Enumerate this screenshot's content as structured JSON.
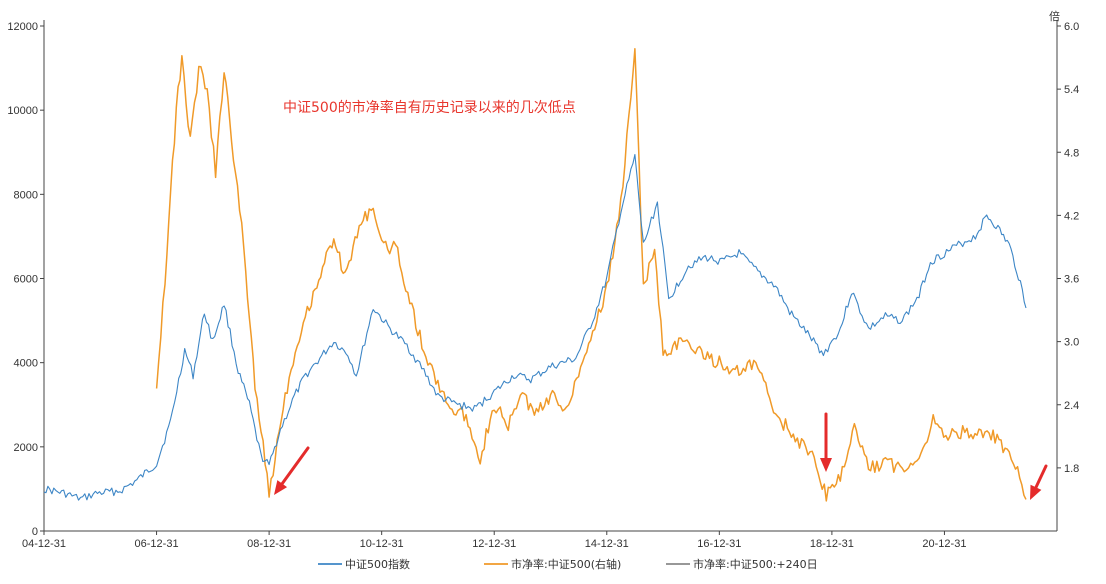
{
  "chart_data": {
    "type": "line",
    "title": "",
    "annotation": "中证500的市净率自有历史记录以来的几次低点",
    "annotation_color": "#e8362d",
    "y_right_unit": "倍",
    "x_ticks": [
      "04-12-31",
      "06-12-31",
      "08-12-31",
      "10-12-31",
      "12-12-31",
      "14-12-31",
      "16-12-31",
      "18-12-31",
      "20-12-31"
    ],
    "ylim_left": [
      0,
      12000
    ],
    "y_left_ticks": [
      "0",
      "2000",
      "4000",
      "6000",
      "8000",
      "10000",
      "12000"
    ],
    "ylim_right": [
      1.2,
      6.0
    ],
    "y_right_ticks": [
      "1.8",
      "2.4",
      "3.0",
      "3.6",
      "4.2",
      "4.8",
      "5.4",
      "6.0"
    ],
    "grid": false,
    "legend_position": "bottom",
    "series": [
      {
        "name": "中证500指数",
        "axis": "left",
        "color": "#3d86c6",
        "points": [
          [
            2004.95,
            1000
          ],
          [
            2005.3,
            900
          ],
          [
            2005.6,
            760
          ],
          [
            2005.9,
            900
          ],
          [
            2006.3,
            950
          ],
          [
            2006.6,
            1200
          ],
          [
            2006.95,
            1600
          ],
          [
            2007.2,
            2600
          ],
          [
            2007.45,
            4300
          ],
          [
            2007.6,
            3700
          ],
          [
            2007.8,
            5200
          ],
          [
            2007.95,
            4500
          ],
          [
            2008.15,
            5400
          ],
          [
            2008.4,
            3800
          ],
          [
            2008.6,
            3000
          ],
          [
            2008.8,
            1800
          ],
          [
            2008.95,
            1550
          ],
          [
            2009.15,
            2400
          ],
          [
            2009.4,
            3200
          ],
          [
            2009.6,
            3700
          ],
          [
            2009.85,
            4100
          ],
          [
            2010.1,
            4500
          ],
          [
            2010.35,
            4200
          ],
          [
            2010.5,
            3700
          ],
          [
            2010.8,
            5300
          ],
          [
            2011.1,
            4800
          ],
          [
            2011.4,
            4400
          ],
          [
            2011.7,
            3800
          ],
          [
            2011.95,
            3200
          ],
          [
            2012.3,
            3000
          ],
          [
            2012.6,
            2900
          ],
          [
            2012.95,
            3300
          ],
          [
            2013.3,
            3700
          ],
          [
            2013.6,
            3600
          ],
          [
            2013.95,
            3900
          ],
          [
            2014.4,
            4100
          ],
          [
            2014.7,
            5000
          ],
          [
            2014.95,
            6000
          ],
          [
            2015.2,
            7600
          ],
          [
            2015.45,
            8900
          ],
          [
            2015.6,
            6800
          ],
          [
            2015.85,
            7800
          ],
          [
            2016.05,
            5500
          ],
          [
            2016.4,
            6300
          ],
          [
            2016.7,
            6500
          ],
          [
            2017.0,
            6400
          ],
          [
            2017.3,
            6600
          ],
          [
            2017.6,
            6200
          ],
          [
            2017.95,
            5800
          ],
          [
            2018.2,
            5200
          ],
          [
            2018.45,
            4800
          ],
          [
            2018.8,
            4200
          ],
          [
            2019.1,
            4800
          ],
          [
            2019.3,
            5700
          ],
          [
            2019.6,
            4800
          ],
          [
            2019.9,
            5100
          ],
          [
            2020.2,
            5000
          ],
          [
            2020.5,
            5600
          ],
          [
            2020.7,
            6400
          ],
          [
            2020.95,
            6600
          ],
          [
            2021.2,
            6800
          ],
          [
            2021.5,
            7000
          ],
          [
            2021.7,
            7500
          ],
          [
            2021.9,
            7200
          ],
          [
            2022.1,
            6800
          ],
          [
            2022.3,
            5900
          ],
          [
            2022.4,
            5300
          ]
        ]
      },
      {
        "name": "市净率:中证500(右轴)",
        "axis": "right",
        "color": "#f09a29",
        "points": [
          [
            2006.95,
            2.6
          ],
          [
            2007.1,
            3.6
          ],
          [
            2007.3,
            5.2
          ],
          [
            2007.4,
            5.7
          ],
          [
            2007.55,
            4.9
          ],
          [
            2007.7,
            5.6
          ],
          [
            2007.85,
            5.4
          ],
          [
            2008.0,
            4.6
          ],
          [
            2008.15,
            5.6
          ],
          [
            2008.35,
            4.6
          ],
          [
            2008.5,
            3.9
          ],
          [
            2008.7,
            2.6
          ],
          [
            2008.95,
            1.55
          ],
          [
            2009.2,
            2.4
          ],
          [
            2009.45,
            3.0
          ],
          [
            2009.7,
            3.4
          ],
          [
            2009.9,
            3.7
          ],
          [
            2010.1,
            4.0
          ],
          [
            2010.3,
            3.6
          ],
          [
            2010.55,
            4.1
          ],
          [
            2010.8,
            4.3
          ],
          [
            2010.95,
            3.9
          ],
          [
            2011.2,
            3.9
          ],
          [
            2011.45,
            3.4
          ],
          [
            2011.7,
            2.9
          ],
          [
            2011.95,
            2.6
          ],
          [
            2012.2,
            2.35
          ],
          [
            2012.45,
            2.3
          ],
          [
            2012.7,
            1.9
          ],
          [
            2012.95,
            2.4
          ],
          [
            2013.2,
            2.2
          ],
          [
            2013.45,
            2.5
          ],
          [
            2013.7,
            2.3
          ],
          [
            2013.95,
            2.5
          ],
          [
            2014.2,
            2.35
          ],
          [
            2014.45,
            2.7
          ],
          [
            2014.7,
            3.1
          ],
          [
            2014.95,
            3.5
          ],
          [
            2015.2,
            4.3
          ],
          [
            2015.45,
            5.8
          ],
          [
            2015.6,
            3.5
          ],
          [
            2015.8,
            3.9
          ],
          [
            2015.95,
            2.9
          ],
          [
            2016.3,
            3.0
          ],
          [
            2016.6,
            2.9
          ],
          [
            2016.95,
            2.8
          ],
          [
            2017.3,
            2.7
          ],
          [
            2017.6,
            2.8
          ],
          [
            2017.95,
            2.3
          ],
          [
            2018.3,
            2.1
          ],
          [
            2018.6,
            1.9
          ],
          [
            2018.85,
            1.55
          ],
          [
            2019.1,
            1.7
          ],
          [
            2019.35,
            2.2
          ],
          [
            2019.6,
            1.8
          ],
          [
            2019.9,
            1.85
          ],
          [
            2020.2,
            1.8
          ],
          [
            2020.5,
            1.9
          ],
          [
            2020.75,
            2.25
          ],
          [
            2021.05,
            2.1
          ],
          [
            2021.35,
            2.15
          ],
          [
            2021.6,
            2.1
          ],
          [
            2021.85,
            2.1
          ],
          [
            2022.1,
            1.9
          ],
          [
            2022.25,
            1.75
          ],
          [
            2022.4,
            1.5
          ]
        ]
      },
      {
        "name": "市净率:中证500:+240日",
        "axis": "right",
        "color": "#8a8a8a",
        "points": []
      }
    ]
  },
  "arrow_color": "#e42b2b",
  "arrows": [
    {
      "name": "arrow-2008-low"
    },
    {
      "name": "arrow-2018-low"
    },
    {
      "name": "arrow-2022-low"
    }
  ]
}
